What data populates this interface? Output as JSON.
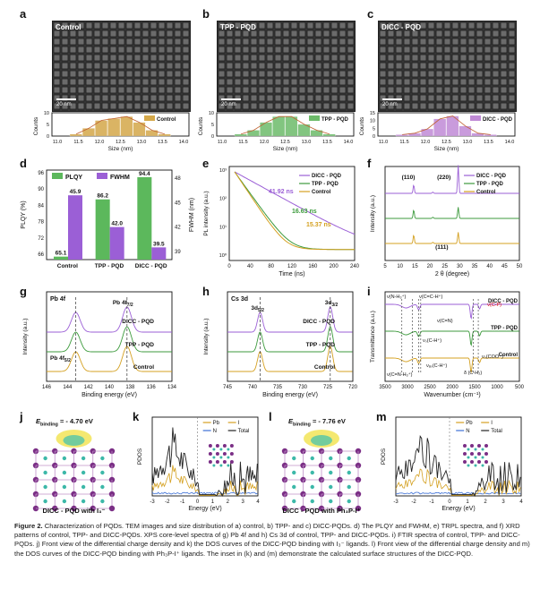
{
  "panel_labels": [
    "a",
    "b",
    "c",
    "d",
    "e",
    "f",
    "g",
    "h",
    "i",
    "j",
    "k",
    "l",
    "m"
  ],
  "tem": [
    {
      "label": "Control",
      "scale": "20 nm",
      "hist_legend": "Control",
      "color": "#d4a84a",
      "values": [
        1,
        4,
        8,
        9,
        10,
        7,
        3,
        1
      ]
    },
    {
      "label": "TPP - PQD",
      "scale": "20 nm",
      "hist_legend": "TPP - PQD",
      "color": "#6dbb6a",
      "values": [
        1,
        3,
        7,
        10,
        10,
        6,
        3,
        1
      ]
    },
    {
      "label": "DICC - PQD",
      "scale": "20 nm",
      "hist_legend": "DICC - PQD",
      "color": "#c08ad6",
      "values": [
        1,
        2,
        5,
        12,
        14,
        7,
        2,
        1
      ]
    }
  ],
  "hist_axis": {
    "ylabel": "Counts",
    "xlabel": "Size (nm)",
    "ticks": [
      "11.0",
      "11.5",
      "12.0",
      "12.5",
      "13.0",
      "13.5",
      "14.0"
    ],
    "yticks_ab": [
      "0",
      "5",
      "10"
    ],
    "yticks_c": [
      "0",
      "5",
      "10",
      "15"
    ]
  },
  "chart_data": [
    {
      "panel": "d",
      "type": "bar",
      "categories": [
        "Control",
        "TPP - PQD",
        "DICC - PQD"
      ],
      "series": [
        {
          "name": "PLQY",
          "values": [
            65.1,
            86.2,
            94.4
          ],
          "color": "#5cb85c"
        },
        {
          "name": "FWHM",
          "values": [
            45.9,
            42.0,
            39.5
          ],
          "color": "#9b5fd6"
        }
      ],
      "value_labels_plqy": [
        "65.1",
        "86.2",
        "94.4"
      ],
      "value_labels_fwhm": [
        "45.9",
        "42.0",
        "39.5"
      ],
      "ylabel_left": "PLQY (%)",
      "ylabel_right": "FWHM (nm)",
      "yticks_left": [
        "66",
        "72",
        "78",
        "84",
        "90",
        "96"
      ],
      "yticks_right": [
        "39",
        "42",
        "45",
        "48"
      ],
      "ylim_left": [
        64,
        97
      ],
      "ylim_right": [
        38,
        49
      ]
    },
    {
      "panel": "e",
      "type": "line",
      "xlabel": "Time (ns)",
      "ylabel": "PL intensity (a.u.)",
      "xticks": [
        "0",
        "40",
        "80",
        "120",
        "160",
        "200",
        "240"
      ],
      "yticks": [
        "10³",
        "10²",
        "10¹",
        "10⁰"
      ],
      "series": [
        {
          "name": "DICC - PQD",
          "color": "#9b5fd6",
          "tau": "41.92 ns"
        },
        {
          "name": "TPP - PQD",
          "color": "#3c9a3c",
          "tau": "16.63 ns"
        },
        {
          "name": "Control",
          "color": "#d4a020",
          "tau": "15.37 ns"
        }
      ]
    },
    {
      "panel": "f",
      "type": "line",
      "xlabel": "2 θ (degree)",
      "ylabel": "Intensity (a.u.)",
      "xticks": [
        "5",
        "10",
        "15",
        "20",
        "25",
        "30",
        "35",
        "40",
        "45",
        "50"
      ],
      "peaks": [
        "(110)",
        "(220)",
        "(111)"
      ],
      "series": [
        {
          "name": "DICC - PQD",
          "color": "#9b5fd6"
        },
        {
          "name": "TPP - PQD",
          "color": "#3c9a3c"
        },
        {
          "name": "Control",
          "color": "#d4a020"
        }
      ]
    },
    {
      "panel": "g",
      "type": "line",
      "title": "Pb 4f",
      "xlabel": "Binding energy (eV)",
      "ylabel": "Intensity (a.u.)",
      "xticks": [
        "146",
        "144",
        "142",
        "140",
        "138",
        "136",
        "134"
      ],
      "peak_labels": [
        "Pb 4f",
        "Pb 4f"
      ],
      "peak_subs": [
        "7/2",
        "5/2"
      ],
      "series": [
        {
          "name": "DICC - PQD",
          "color": "#9b5fd6"
        },
        {
          "name": "TPP - PQD",
          "color": "#3c9a3c"
        },
        {
          "name": "Control",
          "color": "#d4a020"
        }
      ]
    },
    {
      "panel": "h",
      "type": "line",
      "title": "Cs 3d",
      "xlabel": "Binding energy (eV)",
      "ylabel": "Intensity (a.u.)",
      "xticks": [
        "745",
        "740",
        "735",
        "730",
        "725",
        "720"
      ],
      "peak_labels": [
        "3d",
        "3d"
      ],
      "peak_subs": [
        "5/2",
        "3/2"
      ],
      "series": [
        {
          "name": "DICC - PQD",
          "color": "#9b5fd6"
        },
        {
          "name": "TPP - PQD",
          "color": "#3c9a3c"
        },
        {
          "name": "Control",
          "color": "#d4a020"
        }
      ]
    },
    {
      "panel": "i",
      "type": "line",
      "xlabel": "Wavenumber (cm⁻¹)",
      "ylabel": "Transmittance (a.u.)",
      "xticks": [
        "3500",
        "3000",
        "2500",
        "2000",
        "1500",
        "1000",
        "500"
      ],
      "annotations": [
        "ν(N-H₃⁺)",
        "ν(C=C-H⁺)",
        "ν(C=N)",
        "ν(C-P)",
        "νₛ(C-H⁺)",
        "νₐₛ(C-H⁺)",
        "ν(C=N-H₃⁺)",
        "δ (C-H₂)",
        "νₛ(COO⁻)"
      ],
      "series": [
        {
          "name": "DICC - PQD",
          "color": "#9b5fd6"
        },
        {
          "name": "TPP - PQD",
          "color": "#3c9a3c"
        },
        {
          "name": "Control",
          "color": "#d4a020"
        }
      ]
    },
    {
      "panel": "k",
      "type": "line",
      "xlabel": "Energy (eV)",
      "ylabel": "PDOS",
      "xticks": [
        "-3",
        "-2",
        "-1",
        "0",
        "1",
        "2",
        "3",
        "4"
      ],
      "series": [
        {
          "name": "Pb",
          "color": "#d4a020"
        },
        {
          "name": "I",
          "color": "#d4a020"
        },
        {
          "name": "N",
          "color": "#3b6fd6"
        },
        {
          "name": "Total",
          "color": "#222222"
        }
      ]
    },
    {
      "panel": "m",
      "type": "line",
      "xlabel": "Energy (eV)",
      "ylabel": "PDOS",
      "xticks": [
        "-3",
        "-2",
        "-1",
        "0",
        "1",
        "2",
        "3",
        "4"
      ],
      "series": [
        {
          "name": "Pb",
          "color": "#d4a020"
        },
        {
          "name": "I",
          "color": "#d4a020"
        },
        {
          "name": "N",
          "color": "#3b6fd6"
        },
        {
          "name": "Total",
          "color": "#222222"
        }
      ]
    }
  ],
  "panel_j": {
    "binding": "E",
    "binding_sub": "binding",
    "binding_value": "= - 4.70 eV",
    "caption": "DICC - PQD with I₃⁻"
  },
  "panel_l": {
    "binding": "E",
    "binding_sub": "binding",
    "binding_value": "= - 7.76 eV",
    "caption": "DICC - PQD with Ph₃P-I⁺"
  },
  "caption": {
    "lead": "Figure 2.",
    "text": "Characterization of PQDs. TEM images and size distribution of a) control, b) TPP- and c) DICC-PQDs. d) The PLQY and FWHM, e) TRPL spectra, and f) XRD patterns of control, TPP- and DICC-PQDs. XPS core-level spectra of g) Pb 4f and h) Cs 3d of control, TPP- and DICC-PQDs. i) FTIR spectra of control, TPP- and DICC-PQDs. j) Front view of the differential charge density and k) the DOS curves of the DICC-PQD binding with I₃⁻ ligands. l) Front view of the differential charge density and m) the DOS curves of the DICC-PQD binding with Ph₃P-I⁺ ligands. The inset in (k) and (m) demonstrate the calculated surface structures of the DICC-PQD."
  }
}
